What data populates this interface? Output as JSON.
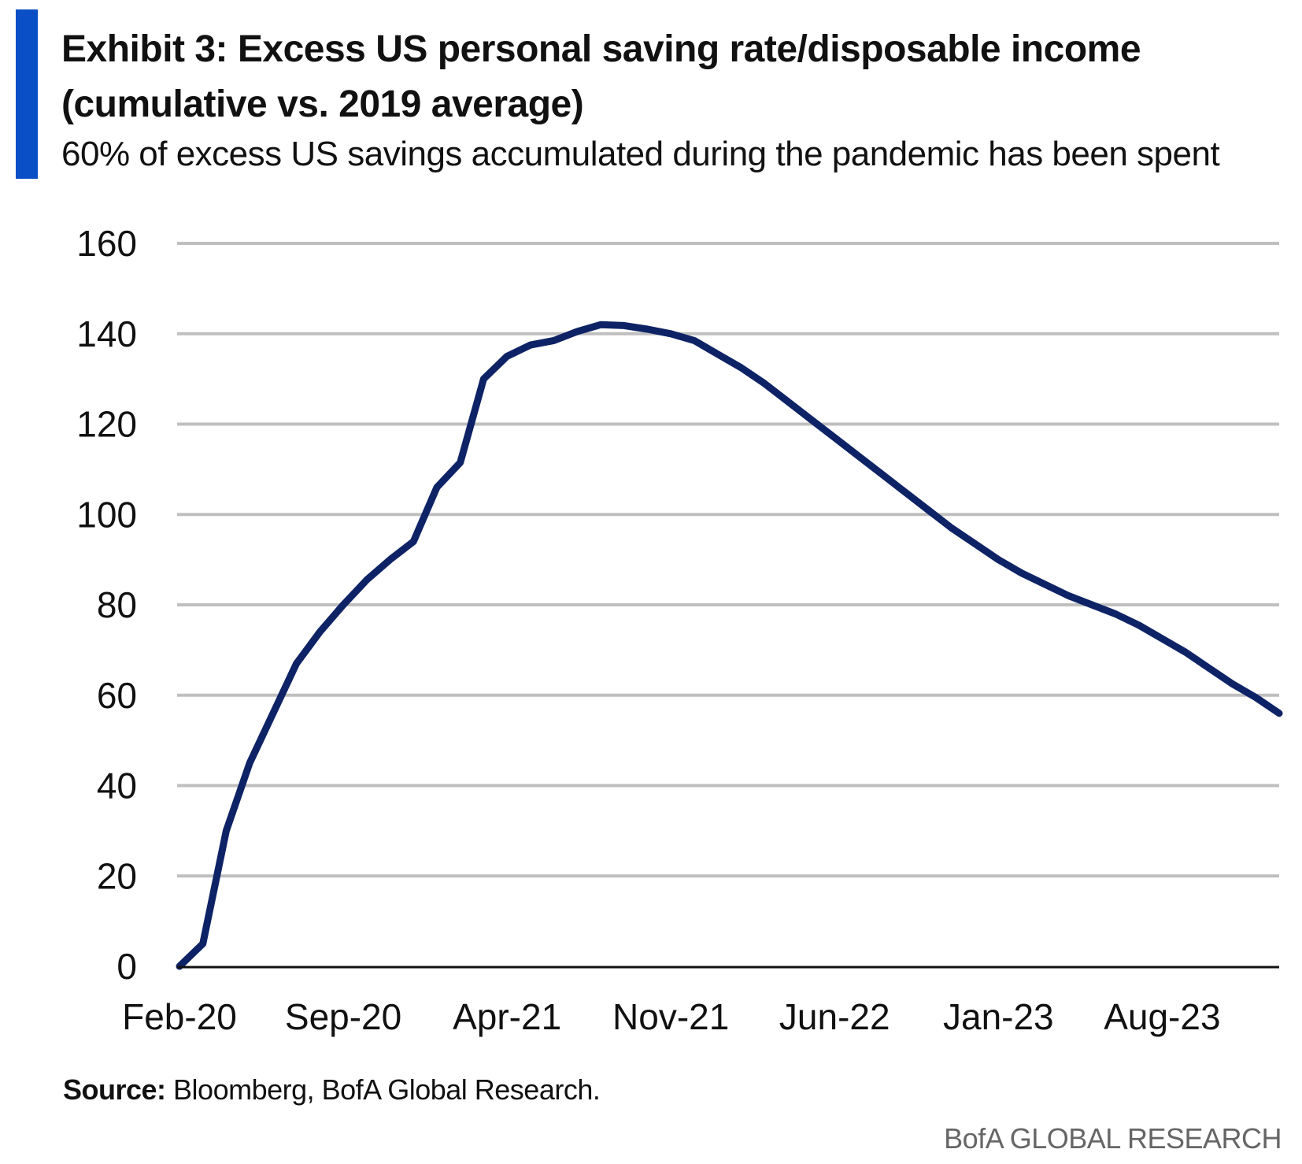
{
  "header": {
    "title_line1": "Exhibit 3: Excess US personal saving rate/disposable income",
    "title_line2": "(cumulative vs. 2019 average)",
    "subtitle": "60% of excess US savings accumulated during the pandemic has been spent"
  },
  "footer": {
    "source_label": "Source:",
    "source_text": " Bloomberg, BofA Global Research.",
    "branding": "BofA GLOBAL RESEARCH"
  },
  "colors": {
    "accent": "#0b4fc6",
    "series_line": "#0e2366",
    "gridline": "#bfbfbf",
    "axis": "#111111"
  },
  "chart_data": {
    "type": "line",
    "title": "Exhibit 3: Excess US personal saving rate/disposable income (cumulative vs. 2019 average)",
    "subtitle": "60% of excess US savings accumulated during the pandemic has been spent",
    "xlabel": "",
    "ylabel": "",
    "ylim": [
      0,
      160
    ],
    "yticks": [
      0,
      20,
      40,
      60,
      80,
      100,
      120,
      140,
      160
    ],
    "grid": true,
    "legend": "none",
    "x": [
      "Feb-20",
      "Mar-20",
      "Apr-20",
      "May-20",
      "Jun-20",
      "Jul-20",
      "Aug-20",
      "Sep-20",
      "Oct-20",
      "Nov-20",
      "Dec-20",
      "Jan-21",
      "Feb-21",
      "Mar-21",
      "Apr-21",
      "May-21",
      "Jun-21",
      "Jul-21",
      "Aug-21",
      "Sep-21",
      "Oct-21",
      "Nov-21",
      "Dec-21",
      "Jan-22",
      "Feb-22",
      "Mar-22",
      "Apr-22",
      "May-22",
      "Jun-22",
      "Jul-22",
      "Aug-22",
      "Sep-22",
      "Oct-22",
      "Nov-22",
      "Dec-22",
      "Jan-23",
      "Feb-23",
      "Mar-23",
      "Apr-23",
      "May-23",
      "Jun-23",
      "Jul-23",
      "Aug-23",
      "Sep-23",
      "Oct-23",
      "Nov-23",
      "Dec-23",
      "Jan-24"
    ],
    "xtick_labels": [
      "Feb-20",
      "Sep-20",
      "Apr-21",
      "Nov-21",
      "Jun-22",
      "Jan-23",
      "Aug-23"
    ],
    "series": [
      {
        "name": "Excess US personal saving rate/disposable income",
        "values": [
          0,
          5,
          30,
          45,
          56,
          67,
          74,
          80,
          85.5,
          90,
          94,
          106,
          111.5,
          130,
          135,
          137.5,
          138.5,
          140.5,
          142,
          141.8,
          141,
          140,
          138.5,
          135.5,
          132.5,
          129,
          125,
          121,
          117,
          113,
          109,
          105,
          101,
          97,
          93.5,
          90,
          87,
          84.5,
          82,
          80,
          78,
          75.5,
          72.5,
          69.5,
          66,
          62.5,
          59.5,
          56
        ]
      }
    ]
  }
}
